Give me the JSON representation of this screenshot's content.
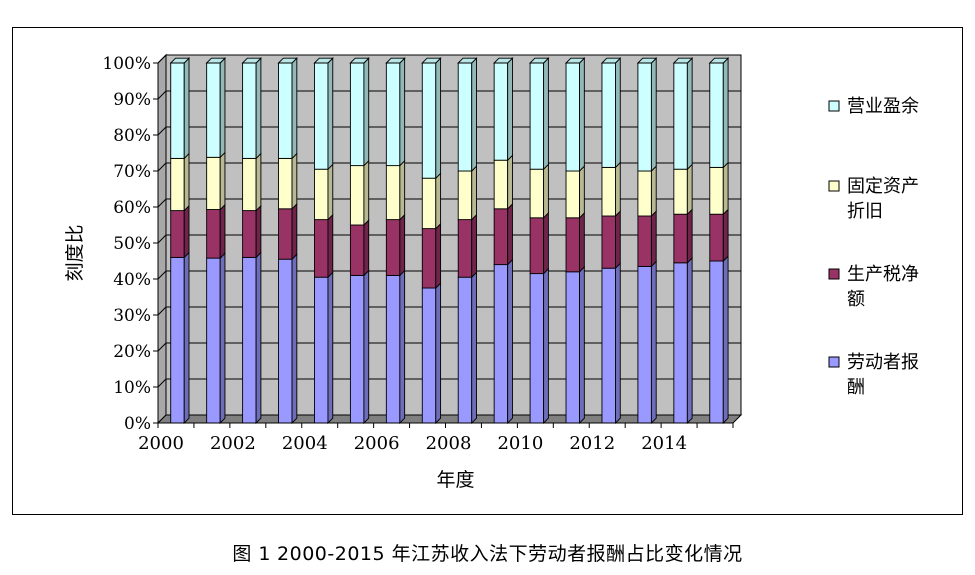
{
  "caption": {
    "prefix": "图 1",
    "text": "2000-2015 年江苏收入法下劳动者报酬占比变化情况"
  },
  "chart_data": {
    "type": "bar",
    "stacked": "percent",
    "xlabel": "年度",
    "ylabel": "刻度比",
    "ylim": [
      0,
      100
    ],
    "yticks": [
      "0%",
      "10%",
      "20%",
      "30%",
      "40%",
      "50%",
      "60%",
      "70%",
      "80%",
      "90%",
      "100%"
    ],
    "categories": [
      "2000",
      "2001",
      "2002",
      "2003",
      "2004",
      "2005",
      "2006",
      "2007",
      "2008",
      "2009",
      "2010",
      "2011",
      "2012",
      "2013",
      "2014",
      "2015"
    ],
    "xtick_labels": [
      "2000",
      "",
      "2002",
      "",
      "2004",
      "",
      "2006",
      "",
      "2008",
      "",
      "2010",
      "",
      "2012",
      "",
      "2014",
      ""
    ],
    "grid": true,
    "legend_position": "right",
    "series": [
      {
        "name": "劳动者报酬",
        "color": "#9999ff",
        "values": [
          46,
          45.8,
          46,
          45.5,
          40.5,
          41,
          41,
          37.5,
          40.5,
          44,
          41.5,
          42,
          43,
          43.5,
          44.5,
          45
        ]
      },
      {
        "name": "生产税净额",
        "color": "#993366",
        "values": [
          13,
          13.5,
          13,
          14,
          16,
          14,
          15.5,
          16.5,
          16,
          15.5,
          15.5,
          15,
          14.5,
          14,
          13.5,
          13
        ]
      },
      {
        "name": "固定资产折旧",
        "color": "#ffffcc",
        "values": [
          14.5,
          14.5,
          14.5,
          14,
          14,
          16.5,
          15,
          14,
          13.5,
          13.5,
          13.5,
          13,
          13.5,
          12.5,
          12.5,
          13
        ]
      },
      {
        "name": "营业盈余",
        "color": "#ccffff",
        "values": [
          26.5,
          26.2,
          26.5,
          26.5,
          29.5,
          28.5,
          28.5,
          32,
          30,
          27,
          29.5,
          30,
          29,
          30,
          29.5,
          29
        ]
      }
    ],
    "legend_labels": [
      {
        "series": "营业盈余",
        "lines": [
          "营业盈余"
        ]
      },
      {
        "series": "固定资产折旧",
        "lines": [
          "固定资产",
          "折旧"
        ]
      },
      {
        "series": "生产税净额",
        "lines": [
          "生产税净",
          "额"
        ]
      },
      {
        "series": "劳动者报酬",
        "lines": [
          "劳动者报",
          "酬"
        ]
      }
    ]
  }
}
